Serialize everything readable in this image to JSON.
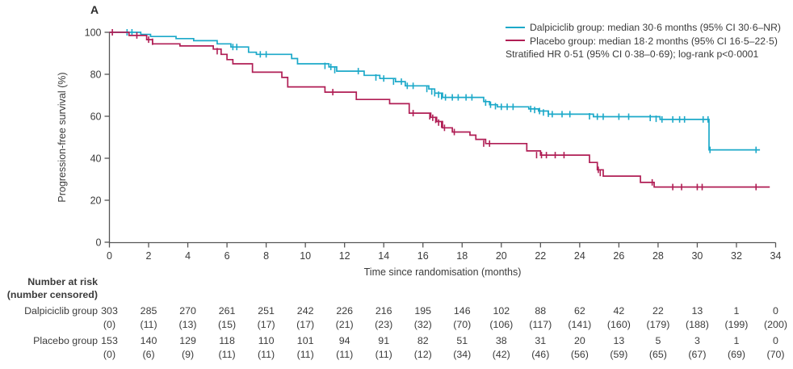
{
  "panel_label": "A",
  "colors": {
    "dalpiciclib": "#1CA9C9",
    "placebo": "#B01E55",
    "text": "#3B3B3B",
    "axis": "#555555"
  },
  "legend": {
    "items": [
      {
        "label": "Dalpiciclib group: median 30·6 months (95% CI 30·6–NR)",
        "color_key": "dalpiciclib"
      },
      {
        "label": "Placebo group: median 18·2 months (95% CI 16·5–22·5)",
        "color_key": "placebo"
      }
    ],
    "note": "Stratified HR 0·51 (95% CI 0·38–0·69); log-rank p<0·0001"
  },
  "chart_data": {
    "type": "line",
    "subtype": "kaplan-meier-step",
    "title": "",
    "xlabel": "Time since randomisation (months)",
    "ylabel": "Progression-free survival (%)",
    "xlim": [
      0,
      34
    ],
    "xticks": [
      0,
      2,
      4,
      6,
      8,
      10,
      12,
      14,
      16,
      18,
      20,
      22,
      24,
      26,
      28,
      30,
      32,
      34
    ],
    "ylim": [
      0,
      100
    ],
    "yticks": [
      0,
      20,
      40,
      60,
      80,
      100
    ],
    "grid": false,
    "legend_position": "top-right",
    "series": [
      {
        "name": "Dalpiciclib group",
        "color_key": "dalpiciclib",
        "median_months": 30.6,
        "ci": "30.6-NR",
        "end_month": 33.2,
        "steps": [
          [
            0,
            100
          ],
          [
            1.6,
            99
          ],
          [
            2.1,
            98
          ],
          [
            3.4,
            97
          ],
          [
            4.3,
            96
          ],
          [
            5.5,
            94.5
          ],
          [
            6.2,
            93
          ],
          [
            7.1,
            90.5
          ],
          [
            7.5,
            89.5
          ],
          [
            9.3,
            87.5
          ],
          [
            9.6,
            85
          ],
          [
            11.2,
            83.5
          ],
          [
            11.6,
            81.5
          ],
          [
            13,
            79.5
          ],
          [
            13.8,
            78
          ],
          [
            14.6,
            76.5
          ],
          [
            15.1,
            74.5
          ],
          [
            16.3,
            73
          ],
          [
            16.6,
            71
          ],
          [
            17,
            69
          ],
          [
            19.1,
            67
          ],
          [
            19.4,
            65.5
          ],
          [
            19.8,
            64.5
          ],
          [
            21.4,
            63.5
          ],
          [
            21.9,
            62.5
          ],
          [
            22.4,
            61
          ],
          [
            24.7,
            59.8
          ],
          [
            28.1,
            58.5
          ],
          [
            30.6,
            44
          ]
        ],
        "censors": [
          [
            0.9,
            100
          ],
          [
            1.15,
            100
          ],
          [
            6.3,
            93
          ],
          [
            6.5,
            93
          ],
          [
            7.7,
            89.5
          ],
          [
            8,
            89.5
          ],
          [
            11,
            84
          ],
          [
            11.3,
            83.5
          ],
          [
            11.5,
            82
          ],
          [
            12.7,
            81.5
          ],
          [
            13.6,
            78.5
          ],
          [
            14,
            78
          ],
          [
            14.5,
            76.5
          ],
          [
            14.9,
            76.5
          ],
          [
            15.2,
            74.5
          ],
          [
            15.5,
            74.5
          ],
          [
            16.2,
            73
          ],
          [
            16.45,
            71.8
          ],
          [
            16.6,
            71
          ],
          [
            16.8,
            70.3
          ],
          [
            16.95,
            69.5
          ],
          [
            17.15,
            69
          ],
          [
            17.5,
            69
          ],
          [
            17.8,
            69
          ],
          [
            18.2,
            69
          ],
          [
            18.5,
            69
          ],
          [
            19.2,
            66.5
          ],
          [
            19.45,
            65.5
          ],
          [
            19.7,
            64.8
          ],
          [
            20,
            64.5
          ],
          [
            20.3,
            64.5
          ],
          [
            20.6,
            64.5
          ],
          [
            21.5,
            63.5
          ],
          [
            21.7,
            63
          ],
          [
            21.95,
            62.5
          ],
          [
            22.15,
            61.8
          ],
          [
            22.4,
            61.2
          ],
          [
            22.6,
            61
          ],
          [
            23.1,
            61
          ],
          [
            23.5,
            61
          ],
          [
            24.5,
            60
          ],
          [
            24.9,
            59.8
          ],
          [
            25.2,
            59.8
          ],
          [
            26,
            59.8
          ],
          [
            26.5,
            59.8
          ],
          [
            27.6,
            59.2
          ],
          [
            27.9,
            58.8
          ],
          [
            28.2,
            58.5
          ],
          [
            28.75,
            58.5
          ],
          [
            29.1,
            58.5
          ],
          [
            29.35,
            58.5
          ],
          [
            30.3,
            58.5
          ],
          [
            30.55,
            58.5
          ],
          [
            30.65,
            44
          ],
          [
            33,
            44
          ]
        ]
      },
      {
        "name": "Placebo group",
        "color_key": "placebo",
        "median_months": 18.2,
        "ci": "16.5-22.5",
        "end_month": 33.7,
        "steps": [
          [
            0,
            100
          ],
          [
            1,
            98.5
          ],
          [
            1.9,
            96.5
          ],
          [
            2.2,
            94.5
          ],
          [
            3.6,
            93.5
          ],
          [
            5.3,
            92
          ],
          [
            5.7,
            89.5
          ],
          [
            6,
            87
          ],
          [
            6.3,
            85
          ],
          [
            7.3,
            81
          ],
          [
            8.8,
            78.5
          ],
          [
            9.1,
            74
          ],
          [
            11,
            71.5
          ],
          [
            12.6,
            68
          ],
          [
            14.3,
            66
          ],
          [
            15.3,
            61.5
          ],
          [
            16.4,
            59.5
          ],
          [
            16.7,
            57.5
          ],
          [
            17,
            54.5
          ],
          [
            17.5,
            52.5
          ],
          [
            18.4,
            51
          ],
          [
            18.7,
            49
          ],
          [
            19.2,
            47
          ],
          [
            21.3,
            43.5
          ],
          [
            22,
            41.5
          ],
          [
            24.5,
            38
          ],
          [
            24.9,
            34.5
          ],
          [
            25.2,
            31.5
          ],
          [
            27.1,
            28.5
          ],
          [
            27.8,
            26.3
          ]
        ],
        "censors": [
          [
            0.15,
            100
          ],
          [
            1.4,
            98.5
          ],
          [
            2,
            96.5
          ],
          [
            2.2,
            95.5
          ],
          [
            5.5,
            91
          ],
          [
            11.4,
            71.5
          ],
          [
            15.5,
            61.5
          ],
          [
            16.35,
            60
          ],
          [
            16.5,
            59.3
          ],
          [
            16.65,
            58.3
          ],
          [
            16.8,
            57
          ],
          [
            16.95,
            56
          ],
          [
            17.1,
            54.5
          ],
          [
            17.6,
            52.5
          ],
          [
            19.1,
            47
          ],
          [
            19.4,
            47
          ],
          [
            21.8,
            41.5
          ],
          [
            22.05,
            41.5
          ],
          [
            22.3,
            41.5
          ],
          [
            22.75,
            41.5
          ],
          [
            23.2,
            41.5
          ],
          [
            24.95,
            34.5
          ],
          [
            25.05,
            33
          ],
          [
            27.7,
            28.5
          ],
          [
            28.75,
            26.3
          ],
          [
            29.2,
            26.3
          ],
          [
            30,
            26.3
          ],
          [
            30.25,
            26.3
          ],
          [
            33,
            26.3
          ]
        ]
      }
    ],
    "stats_note": "Stratified HR 0·51 (95% CI 0·38–0·69); log-rank p<0·0001"
  },
  "risk_table": {
    "header_line1": "Number at risk",
    "header_line2": "(number censored)",
    "columns": [
      0,
      2,
      4,
      6,
      8,
      10,
      12,
      14,
      16,
      18,
      20,
      22,
      24,
      26,
      28,
      30,
      32,
      34
    ],
    "rows": [
      {
        "label": "Dalpiciclib group",
        "at_risk": [
          "303",
          "285",
          "270",
          "261",
          "251",
          "242",
          "226",
          "216",
          "195",
          "146",
          "102",
          "88",
          "62",
          "42",
          "22",
          "13",
          "1",
          "0"
        ],
        "censored": [
          "(0)",
          "(11)",
          "(13)",
          "(15)",
          "(17)",
          "(17)",
          "(21)",
          "(23)",
          "(32)",
          "(70)",
          "(106)",
          "(117)",
          "(141)",
          "(160)",
          "(179)",
          "(188)",
          "(199)",
          "(200)"
        ]
      },
      {
        "label": "Placebo group",
        "at_risk": [
          "153",
          "140",
          "129",
          "118",
          "110",
          "101",
          "94",
          "91",
          "82",
          "51",
          "38",
          "31",
          "20",
          "13",
          "5",
          "3",
          "1",
          "0"
        ],
        "censored": [
          "(0)",
          "(6)",
          "(9)",
          "(11)",
          "(11)",
          "(11)",
          "(11)",
          "(11)",
          "(12)",
          "(34)",
          "(42)",
          "(46)",
          "(56)",
          "(59)",
          "(65)",
          "(67)",
          "(69)",
          "(70)"
        ]
      }
    ]
  }
}
